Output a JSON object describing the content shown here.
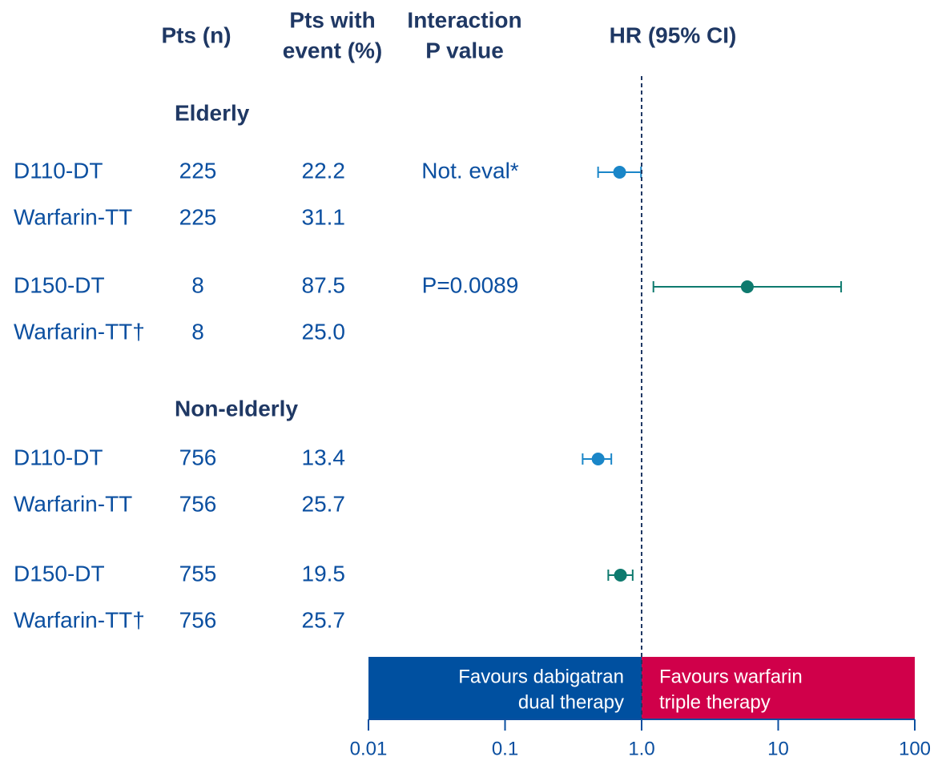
{
  "chart_data": {
    "type": "forest",
    "column_headers": [
      [
        "Pts (n)"
      ],
      [
        "Pts with",
        "event (%)"
      ],
      [
        "Interaction",
        "P value"
      ],
      [
        "HR (95% CI)"
      ]
    ],
    "groups": [
      {
        "name": "Elderly",
        "rows": [
          {
            "label": "D110-DT",
            "n": "225",
            "pct": "22.2",
            "p_value": "Not. eval*",
            "hr": 0.69,
            "ci": [
              0.48,
              0.99
            ],
            "color": "#1a86c8"
          },
          {
            "label": "Warfarin-TT",
            "n": "225",
            "pct": "31.1"
          },
          {
            "label": "D150-DT",
            "n": "8",
            "pct": "87.5",
            "p_value": "P=0.0089",
            "hr": 5.94,
            "ci": [
              1.22,
              28.9
            ],
            "color": "#0e7a6e"
          },
          {
            "label": "Warfarin-TT†",
            "n": "8",
            "pct": "25.0"
          }
        ]
      },
      {
        "name": "Non-elderly",
        "rows": [
          {
            "label": "D110-DT",
            "n": "756",
            "pct": "13.4",
            "hr": 0.48,
            "ci": [
              0.37,
              0.6
            ],
            "color": "#1a86c8"
          },
          {
            "label": "Warfarin-TT",
            "n": "756",
            "pct": "25.7"
          },
          {
            "label": "D150-DT",
            "n": "755",
            "pct": "19.5",
            "hr": 0.7,
            "ci": [
              0.57,
              0.86
            ],
            "color": "#0e7a6e"
          },
          {
            "label": "Warfarin-TT†",
            "n": "756",
            "pct": "25.7"
          }
        ]
      }
    ],
    "xscale": "log",
    "xlim": [
      0.01,
      100
    ],
    "xticks": [
      0.01,
      0.1,
      {
        "value": 1,
        "label": "1.0"
      },
      10,
      100
    ],
    "reference_line": 1,
    "favours": [
      {
        "lines": [
          "Favours dabigatran",
          "dual therapy"
        ],
        "color": "#0050a0"
      },
      {
        "lines": [
          "Favours warfarin",
          "triple therapy"
        ],
        "color": "#d0004a"
      }
    ]
  }
}
